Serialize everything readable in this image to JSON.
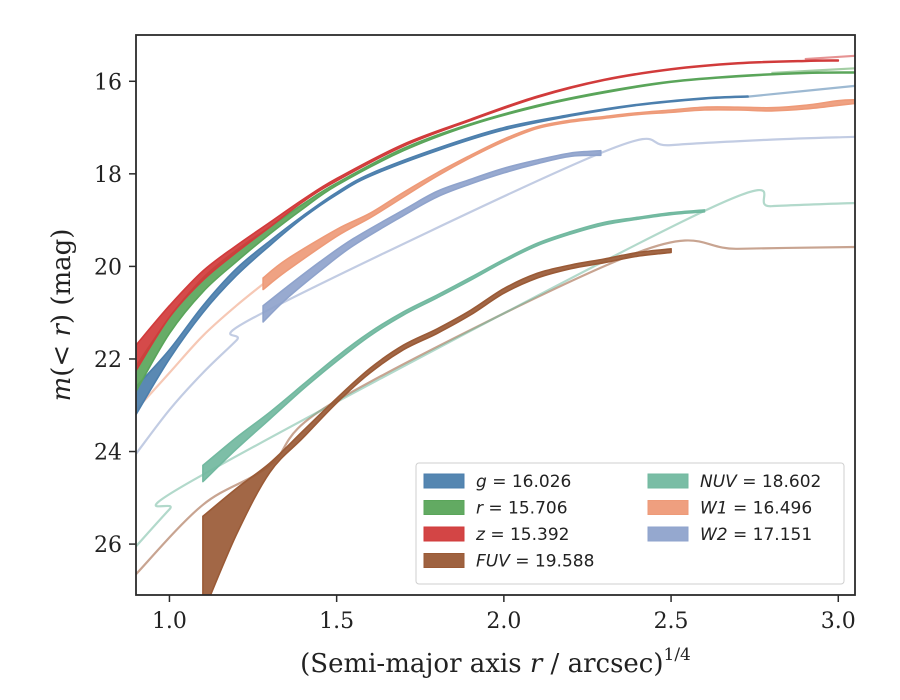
{
  "chart_data": {
    "type": "line",
    "xlabel": "(Semi-major axis r / arcsec)^1/4",
    "ylabel": "m(< r) (mag)",
    "xlim": [
      0.9,
      3.05
    ],
    "ylim": [
      27.1,
      15.0
    ],
    "y_inverted": true,
    "xticks": [
      1.0,
      1.5,
      2.0,
      2.5,
      3.0
    ],
    "xtick_labels": [
      "1.0",
      "1.5",
      "2.0",
      "2.5",
      "3.0"
    ],
    "yticks": [
      16,
      18,
      20,
      22,
      24,
      26
    ],
    "ytick_labels": [
      "16",
      "18",
      "20",
      "22",
      "24",
      "26"
    ],
    "grid": false,
    "legend_position": "lower-right",
    "legend_columns": 2,
    "series": [
      {
        "key": "g",
        "name": "g = 16.026",
        "color": "#4c7fad",
        "band": [
          [
            0.9,
            23.2,
            22.6
          ],
          [
            1.0,
            22.0,
            21.8
          ],
          [
            1.1,
            21.0,
            20.85
          ],
          [
            1.2,
            20.2,
            20.05
          ],
          [
            1.3,
            19.55,
            19.45
          ],
          [
            1.4,
            18.95,
            18.9
          ],
          [
            1.5,
            18.45,
            18.4
          ],
          [
            1.6,
            18.05,
            18.0
          ],
          [
            1.8,
            17.5,
            17.45
          ],
          [
            2.0,
            17.05,
            17.0
          ],
          [
            2.2,
            16.75,
            16.72
          ],
          [
            2.4,
            16.52,
            16.5
          ],
          [
            2.6,
            16.38,
            16.36
          ],
          [
            2.73,
            16.34,
            16.32
          ]
        ],
        "ext": [
          [
            2.73,
            16.33
          ],
          [
            3.05,
            16.1
          ]
        ]
      },
      {
        "key": "r",
        "name": "r = 15.706",
        "color": "#5aa55a",
        "band": [
          [
            0.9,
            22.7,
            22.15
          ],
          [
            1.0,
            21.45,
            21.1
          ],
          [
            1.1,
            20.55,
            20.25
          ],
          [
            1.2,
            19.9,
            19.65
          ],
          [
            1.3,
            19.3,
            19.15
          ],
          [
            1.4,
            18.75,
            18.65
          ],
          [
            1.5,
            18.25,
            18.2
          ],
          [
            1.7,
            17.5,
            17.45
          ],
          [
            1.9,
            16.95,
            16.92
          ],
          [
            2.1,
            16.55,
            16.52
          ],
          [
            2.3,
            16.25,
            16.22
          ],
          [
            2.5,
            16.02,
            16.0
          ],
          [
            2.7,
            15.9,
            15.88
          ],
          [
            2.9,
            15.83,
            15.81
          ],
          [
            3.05,
            15.82,
            15.8
          ]
        ],
        "ext": [
          [
            2.8,
            15.82
          ],
          [
            3.05,
            15.72
          ]
        ]
      },
      {
        "key": "z",
        "name": "z = 15.392",
        "color": "#d13b3b",
        "band": [
          [
            0.9,
            22.25,
            21.7
          ],
          [
            1.0,
            21.1,
            20.85
          ],
          [
            1.1,
            20.3,
            20.1
          ],
          [
            1.2,
            19.7,
            19.55
          ],
          [
            1.3,
            19.15,
            19.05
          ],
          [
            1.4,
            18.6,
            18.55
          ],
          [
            1.5,
            18.15,
            18.1
          ],
          [
            1.7,
            17.4,
            17.36
          ],
          [
            1.9,
            16.85,
            16.82
          ],
          [
            2.1,
            16.35,
            16.32
          ],
          [
            2.3,
            15.98,
            15.96
          ],
          [
            2.5,
            15.75,
            15.73
          ],
          [
            2.7,
            15.62,
            15.6
          ],
          [
            2.9,
            15.57,
            15.55
          ],
          [
            3.0,
            15.56,
            15.54
          ]
        ],
        "ext": [
          [
            2.9,
            15.52
          ],
          [
            3.05,
            15.45
          ]
        ]
      },
      {
        "key": "fuv",
        "name": "FUV = 19.588",
        "color": "#9a5a36",
        "band": [
          [
            1.1,
            27.5,
            25.4
          ],
          [
            1.2,
            25.8,
            24.8
          ],
          [
            1.3,
            24.45,
            24.25
          ],
          [
            1.4,
            23.7,
            23.55
          ],
          [
            1.5,
            22.95,
            22.85
          ],
          [
            1.6,
            22.3,
            22.2
          ],
          [
            1.7,
            21.8,
            21.7
          ],
          [
            1.8,
            21.45,
            21.35
          ],
          [
            1.9,
            21.05,
            20.95
          ],
          [
            2.0,
            20.58,
            20.48
          ],
          [
            2.1,
            20.25,
            20.15
          ],
          [
            2.2,
            20.05,
            19.97
          ],
          [
            2.3,
            19.92,
            19.84
          ],
          [
            2.4,
            19.78,
            19.7
          ],
          [
            2.5,
            19.7,
            19.62
          ]
        ],
        "ext": [
          [
            0.9,
            26.65
          ],
          [
            1.1,
            25.15
          ],
          [
            1.3,
            24.3
          ],
          [
            1.5,
            22.9
          ],
          [
            2.4,
            19.7
          ],
          [
            2.7,
            19.62
          ],
          [
            3.05,
            19.58
          ]
        ]
      },
      {
        "key": "nuv",
        "name": "NUV = 18.602",
        "color": "#72b9a0",
        "band": [
          [
            1.1,
            24.65,
            24.3
          ],
          [
            1.2,
            23.95,
            23.7
          ],
          [
            1.3,
            23.3,
            23.15
          ],
          [
            1.4,
            22.65,
            22.55
          ],
          [
            1.5,
            22.05,
            21.95
          ],
          [
            1.6,
            21.5,
            21.42
          ],
          [
            1.7,
            21.05,
            20.98
          ],
          [
            1.8,
            20.68,
            20.62
          ],
          [
            1.9,
            20.3,
            20.24
          ],
          [
            2.0,
            19.9,
            19.85
          ],
          [
            2.1,
            19.55,
            19.5
          ],
          [
            2.2,
            19.3,
            19.25
          ],
          [
            2.3,
            19.1,
            19.05
          ],
          [
            2.4,
            18.98,
            18.94
          ],
          [
            2.5,
            18.88,
            18.84
          ],
          [
            2.6,
            18.82,
            18.78
          ]
        ],
        "ext": [
          [
            0.9,
            26.05
          ],
          [
            1.0,
            25.25
          ],
          [
            1.1,
            24.5
          ],
          [
            2.6,
            18.8
          ],
          [
            2.8,
            18.7
          ],
          [
            3.05,
            18.63
          ]
        ]
      },
      {
        "key": "w1",
        "name": "W1 = 16.496",
        "color": "#ee9a78",
        "band": [
          [
            1.28,
            20.5,
            20.25
          ],
          [
            1.35,
            20.1,
            19.85
          ],
          [
            1.5,
            19.35,
            19.2
          ],
          [
            1.6,
            18.95,
            18.85
          ],
          [
            1.7,
            18.5,
            18.4
          ],
          [
            1.8,
            18.05,
            17.98
          ],
          [
            1.9,
            17.65,
            17.6
          ],
          [
            2.0,
            17.3,
            17.25
          ],
          [
            2.1,
            17.02,
            16.98
          ],
          [
            2.2,
            16.88,
            16.84
          ],
          [
            2.3,
            16.8,
            16.76
          ],
          [
            2.4,
            16.72,
            16.68
          ],
          [
            2.5,
            16.67,
            16.62
          ],
          [
            2.6,
            16.62,
            16.56
          ],
          [
            2.7,
            16.62,
            16.56
          ],
          [
            2.8,
            16.64,
            16.57
          ],
          [
            2.9,
            16.6,
            16.52
          ],
          [
            3.0,
            16.52,
            16.42
          ],
          [
            3.05,
            16.48,
            16.4
          ]
        ],
        "ext": [
          [
            0.9,
            23.1
          ],
          [
            1.0,
            22.3
          ],
          [
            1.1,
            21.5
          ],
          [
            1.2,
            20.85
          ],
          [
            1.28,
            20.38
          ]
        ]
      },
      {
        "key": "w2",
        "name": "W2 = 17.151",
        "color": "#8fa3cc",
        "band": [
          [
            1.28,
            21.2,
            20.85
          ],
          [
            1.35,
            20.7,
            20.45
          ],
          [
            1.45,
            20.1,
            19.9
          ],
          [
            1.55,
            19.55,
            19.4
          ],
          [
            1.7,
            18.9,
            18.78
          ],
          [
            1.8,
            18.5,
            18.38
          ],
          [
            1.9,
            18.22,
            18.12
          ],
          [
            2.0,
            17.98,
            17.88
          ],
          [
            2.1,
            17.78,
            17.7
          ],
          [
            2.2,
            17.62,
            17.55
          ],
          [
            2.29,
            17.6,
            17.5
          ]
        ],
        "ext": [
          [
            0.9,
            24.05
          ],
          [
            1.0,
            23.1
          ],
          [
            1.1,
            22.3
          ],
          [
            1.2,
            21.6
          ],
          [
            1.28,
            21.0
          ],
          [
            2.29,
            17.55
          ],
          [
            2.5,
            17.38
          ],
          [
            2.8,
            17.26
          ],
          [
            3.05,
            17.2
          ]
        ]
      }
    ]
  },
  "legend": {
    "col1": [
      {
        "key": "g",
        "var": "g",
        "rest": " = 16.026",
        "color": "#4c7fad"
      },
      {
        "key": "r",
        "var": "r",
        "rest": " = 15.706",
        "color": "#5aa55a"
      },
      {
        "key": "z",
        "var": "z",
        "rest": " = 15.392",
        "color": "#d13b3b"
      },
      {
        "key": "fuv",
        "var": "FUV",
        "rest": " = 19.588",
        "color": "#9a5a36"
      }
    ],
    "col2": [
      {
        "key": "nuv",
        "var": "NUV",
        "rest": " = 18.602",
        "color": "#72b9a0"
      },
      {
        "key": "w1",
        "var": "W1",
        "rest": " = 16.496",
        "color": "#ee9a78"
      },
      {
        "key": "w2",
        "var": "W2",
        "rest": " = 17.151",
        "color": "#8fa3cc"
      }
    ]
  }
}
